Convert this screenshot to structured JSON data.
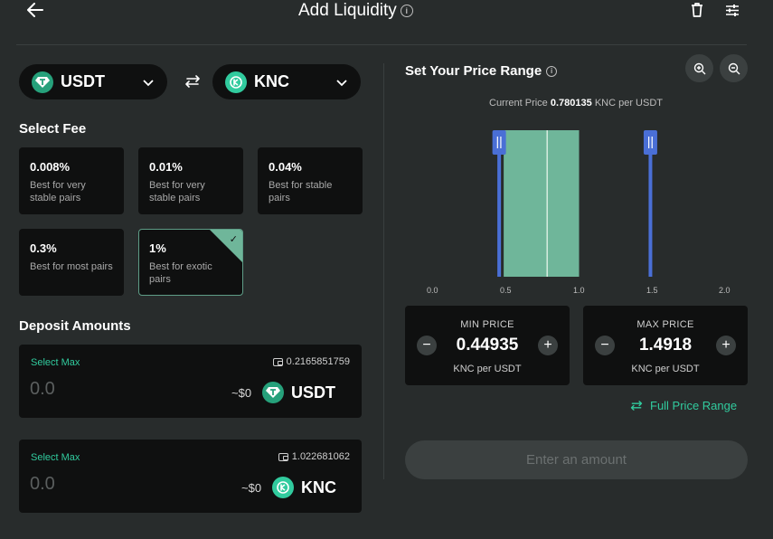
{
  "header": {
    "title": "Add Liquidity",
    "info_icon": "info-icon",
    "back_icon": "arrow-left-icon",
    "trash_icon": "trash-icon",
    "settings_icon": "sliders-icon"
  },
  "tokens": {
    "token_a": {
      "symbol": "USDT",
      "icon": "tether-logo-icon",
      "color": "#26a17b"
    },
    "token_b": {
      "symbol": "KNC",
      "icon": "knc-logo-icon",
      "color": "#31cb9e"
    },
    "swap_icon": "swap-arrows-icon"
  },
  "fee": {
    "title": "Select Fee",
    "options": [
      {
        "pct": "0.008%",
        "desc": "Best for very stable pairs",
        "selected": false
      },
      {
        "pct": "0.01%",
        "desc": "Best for very stable pairs",
        "selected": false
      },
      {
        "pct": "0.04%",
        "desc": "Best for stable pairs",
        "selected": false
      },
      {
        "pct": "0.3%",
        "desc": "Best for most pairs",
        "selected": false
      },
      {
        "pct": "1%",
        "desc": "Best for exotic pairs",
        "selected": true
      }
    ]
  },
  "deposit": {
    "title": "Deposit Amounts",
    "rows": [
      {
        "select_max": "Select Max",
        "balance": "0.2165851759",
        "amount_placeholder": "0.0",
        "usd": "~$0",
        "symbol": "USDT"
      },
      {
        "select_max": "Select Max",
        "balance": "1.022681062",
        "amount_placeholder": "0.0",
        "usd": "~$0",
        "symbol": "KNC"
      }
    ]
  },
  "price_range": {
    "title": "Set Your Price Range",
    "current_price_label": "Current Price",
    "current_price_value": "0.780135",
    "current_price_unit": "KNC per USDT",
    "axis_ticks": [
      "0.0",
      "0.5",
      "1.0",
      "1.5",
      "2.0"
    ],
    "axis_min": 0.0,
    "axis_max": 2.0,
    "range_min": 0.44935,
    "range_max": 1.4918,
    "current_price": 0.780135,
    "min_price": {
      "label": "MIN PRICE",
      "value": "0.44935",
      "unit": "KNC per USDT"
    },
    "max_price": {
      "label": "MAX PRICE",
      "value": "1.4918",
      "unit": "KNC per USDT"
    },
    "full_range_label": "Full Price Range",
    "zoom_in_icon": "zoom-in-icon",
    "zoom_out_icon": "zoom-out-icon"
  },
  "submit": {
    "label": "Enter an amount"
  },
  "colors": {
    "background": "#282c2c",
    "card": "#0f1010",
    "accent": "#31cb9e",
    "handle": "#4a6fd6",
    "liquidity_bar": "#6fb69a"
  }
}
